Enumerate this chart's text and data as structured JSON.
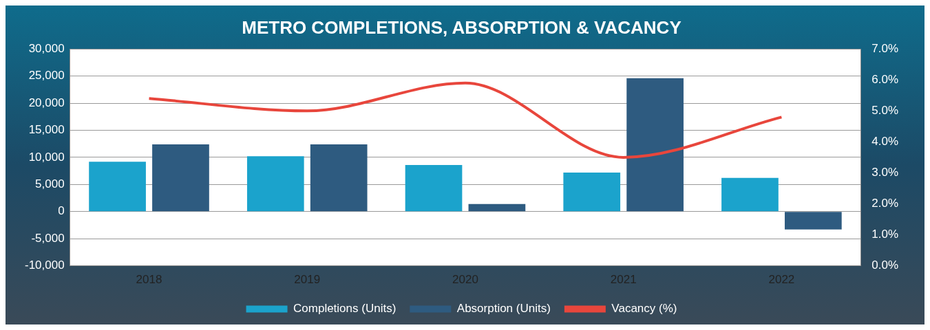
{
  "chart_data": {
    "type": "bar",
    "title": "METRO COMPLETIONS, ABSORPTION & VACANCY",
    "categories": [
      "2018",
      "2019",
      "2020",
      "2021",
      "2022"
    ],
    "series": [
      {
        "name": "Completions (Units)",
        "color": "#1ba3cc",
        "values": [
          9200,
          10200,
          8600,
          7200,
          6200
        ]
      },
      {
        "name": "Absorption (Units)",
        "color": "#2e5b80",
        "values": [
          12400,
          12400,
          1400,
          24600,
          -3300
        ]
      },
      {
        "name": "Vacancy (%)",
        "type": "line",
        "axis": "y2",
        "color": "#e8463c",
        "values": [
          5.4,
          5.0,
          5.9,
          3.5,
          4.8
        ]
      }
    ],
    "ylim": [
      -10000,
      30000
    ],
    "yticks": [
      {
        "value": -10000,
        "label": "-10,000"
      },
      {
        "value": -5000,
        "label": "-5,000"
      },
      0,
      {
        "value": 5000,
        "label": "5,000"
      },
      {
        "value": 10000,
        "label": "10,000"
      },
      {
        "value": 15000,
        "label": "15,000"
      },
      {
        "value": 20000,
        "label": "20,000"
      },
      {
        "value": 25000,
        "label": "25,000"
      },
      {
        "value": 30000,
        "label": "30,000"
      }
    ],
    "y2lim": [
      0,
      7
    ],
    "y2ticks": [
      {
        "value": 0,
        "label": "0.0%"
      },
      {
        "value": 1,
        "label": "1.0%"
      },
      {
        "value": 2,
        "label": "2.0%"
      },
      {
        "value": 3,
        "label": "3.0%"
      },
      {
        "value": 4,
        "label": "4.0%"
      },
      {
        "value": 5,
        "label": "5.0%"
      },
      {
        "value": 6,
        "label": "6.0%"
      },
      {
        "value": 7,
        "label": "7.0%"
      }
    ],
    "grid": "y",
    "legend": "bottom",
    "marker": "none"
  }
}
